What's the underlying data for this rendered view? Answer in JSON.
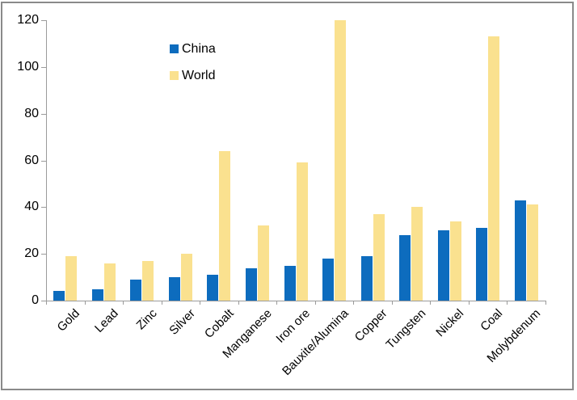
{
  "figure": {
    "background": "#FFFFFF",
    "border_color": "#8A8A8A",
    "axis_color": "#9B9B9B",
    "text_color": "#000000"
  },
  "chart_data": {
    "type": "bar",
    "title": "",
    "xlabel": "",
    "ylabel": "",
    "categories": [
      "Gold",
      "Lead",
      "Zinc",
      "Silver",
      "Cobalt",
      "Manganese",
      "Iron ore",
      "Bauxite/Alumina",
      "Copper",
      "Tungsten",
      "Nickel",
      "Coal",
      "Molybdenum"
    ],
    "series": [
      {
        "name": "China",
        "color": "#0D6CBE",
        "values": [
          4,
          5,
          9,
          10,
          11,
          14,
          15,
          18,
          19,
          28,
          30,
          31,
          43
        ]
      },
      {
        "name": "World",
        "color": "#FAE18F",
        "values": [
          19,
          16,
          17,
          20,
          64,
          32,
          59,
          120,
          37,
          40,
          34,
          113,
          41
        ]
      }
    ],
    "ylim": [
      0,
      120
    ],
    "yticks": [
      0,
      20,
      40,
      60,
      80,
      100,
      120
    ],
    "grid": false,
    "legend_position": "inside-upper-left"
  }
}
